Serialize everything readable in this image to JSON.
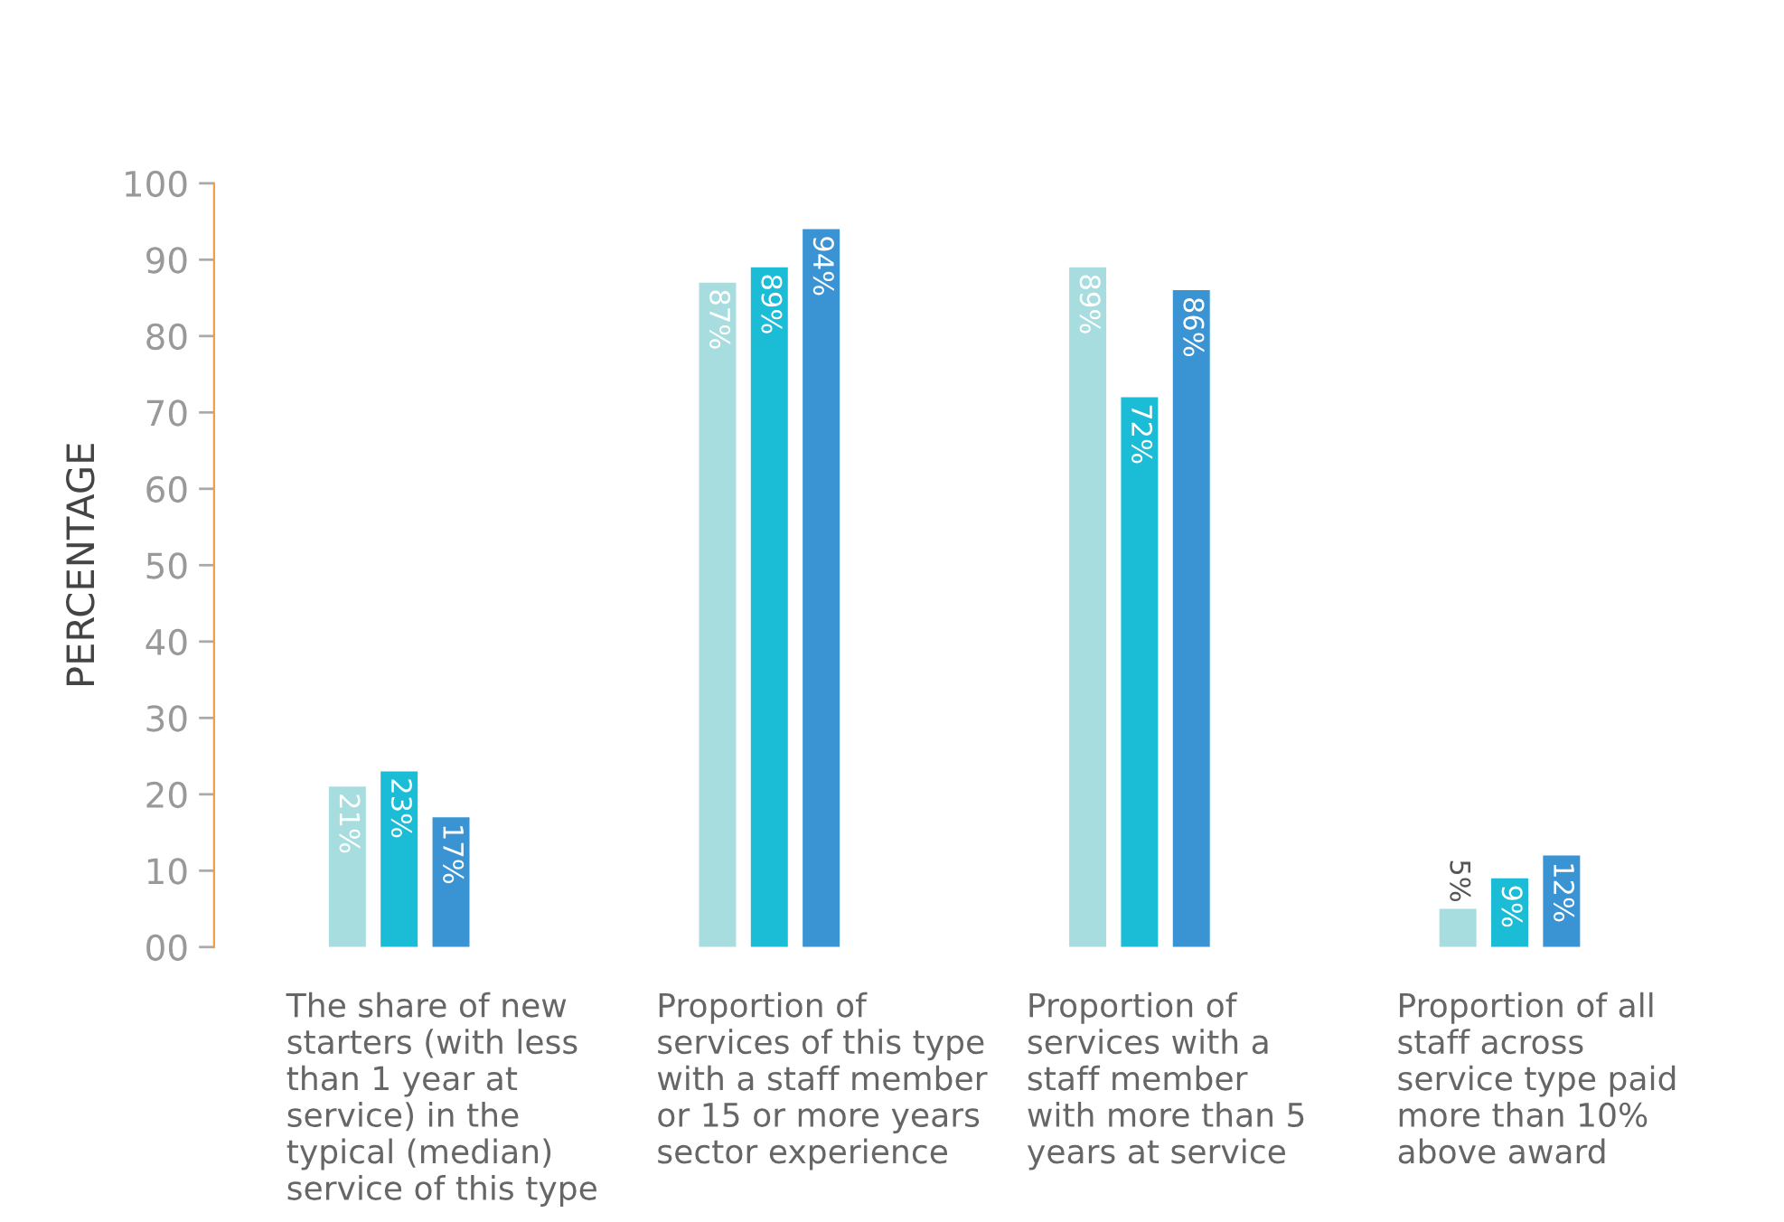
{
  "chart_data": {
    "type": "bar",
    "ylabel": "PERCENTAGE",
    "categories": [
      "The share of new\nstarters (with less\nthan 1 year at\nservice) in the\ntypical (median)\nservice of this type",
      "Proportion of\nservices of this type\nwith a staff member\nor 15 or more years\nsector experience",
      "Proportion of\nservices with a\nstaff member\nwith more than 5\nyears at service",
      "Proportion of all\nstaff across\nservice type paid\nmore than 10%\nabove award"
    ],
    "series": [
      {
        "color": "#a8dde0",
        "values": [
          21,
          87,
          89,
          5
        ],
        "value_labels": [
          "21%",
          "87%",
          "89%",
          "5%"
        ]
      },
      {
        "color": "#1bbcd6",
        "values": [
          23,
          89,
          72,
          9
        ],
        "value_labels": [
          "23%",
          "89%",
          "72%",
          "9%"
        ]
      },
      {
        "color": "#3a94d4",
        "values": [
          17,
          94,
          86,
          12
        ],
        "value_labels": [
          "17%",
          "94%",
          "86%",
          "12%"
        ]
      }
    ],
    "ylim": [
      0,
      100
    ],
    "yticks": [
      {
        "value": 0,
        "label": "00"
      },
      10,
      20,
      30,
      40,
      50,
      60,
      70,
      80,
      90,
      100
    ],
    "grid": false,
    "legend": false
  }
}
